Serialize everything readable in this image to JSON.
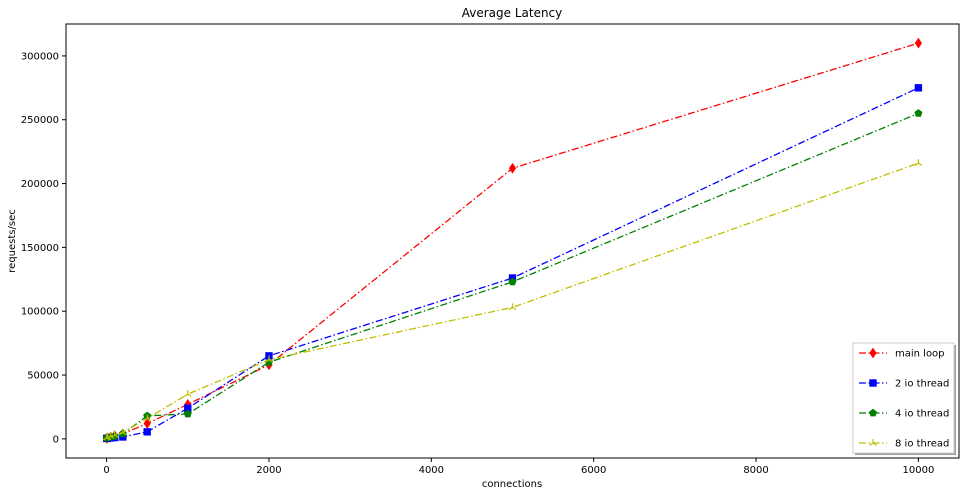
{
  "chart_data": {
    "type": "line",
    "title": "Average Latency",
    "xlabel": "connections",
    "ylabel": "requests/sec",
    "xlim": [
      -500,
      10500
    ],
    "ylim": [
      -15000,
      325000
    ],
    "xticks": [
      0,
      2000,
      4000,
      6000,
      8000,
      10000
    ],
    "yticks": [
      0,
      50000,
      100000,
      150000,
      200000,
      250000,
      300000
    ],
    "grid": false,
    "legend_position": "lower-right",
    "series": [
      {
        "name": "main loop",
        "color": "#ff0000",
        "marker": "diamond",
        "linestyle": "dashdot",
        "x": [
          1,
          10,
          50,
          100,
          200,
          500,
          1000,
          2000,
          5000,
          10000
        ],
        "y": [
          500,
          800,
          1500,
          2500,
          4000,
          12000,
          27000,
          58000,
          212000,
          310000
        ]
      },
      {
        "name": "2 io thread",
        "color": "#0000ff",
        "marker": "square",
        "linestyle": "dashdot",
        "x": [
          1,
          10,
          50,
          100,
          200,
          500,
          1000,
          2000,
          5000,
          10000
        ],
        "y": [
          300,
          500,
          700,
          1000,
          1500,
          5500,
          24000,
          65000,
          126000,
          275000
        ]
      },
      {
        "name": "4 io thread",
        "color": "#008000",
        "marker": "pentagon",
        "linestyle": "dashdot",
        "x": [
          1,
          10,
          50,
          100,
          200,
          500,
          1000,
          2000,
          5000,
          10000
        ],
        "y": [
          600,
          1000,
          1500,
          2000,
          4000,
          18000,
          19500,
          60000,
          123000,
          255000
        ]
      },
      {
        "name": "8 io thread",
        "color": "#bfbf00",
        "marker": "tri-up",
        "linestyle": "dashdot",
        "x": [
          1,
          10,
          50,
          100,
          200,
          500,
          1000,
          2000,
          5000,
          10000
        ],
        "y": [
          800,
          1200,
          2000,
          3000,
          5000,
          16000,
          35000,
          62000,
          103000,
          216000
        ]
      }
    ]
  }
}
